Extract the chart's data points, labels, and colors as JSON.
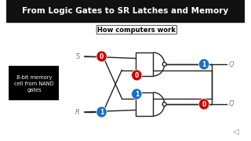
{
  "title": "From Logic Gates to SR Latches and Memory",
  "subtitle": "How computers work",
  "bg_color": "#ffffff",
  "title_color": "#000000",
  "subtitle_color": "#000000",
  "label_s": "S̅",
  "label_r": "R",
  "label_q": "Q",
  "label_qbar": "Q̅",
  "label_note": "8-bit memory\ncell from NAND\ngates",
  "note_bg": "#000000",
  "note_fg": "#ffffff",
  "red_circle_color": "#cc0000",
  "blue_circle_color": "#1a6fc4",
  "circle_text_color": "#ffffff",
  "top_gate_inputs": [
    "0",
    "0"
  ],
  "top_gate_output": "1",
  "bot_gate_inputs": [
    "1",
    "1"
  ],
  "bot_gate_output": "0",
  "wire_color": "#222222",
  "gate_fill": "#ffffff",
  "gate_edge": "#222222"
}
